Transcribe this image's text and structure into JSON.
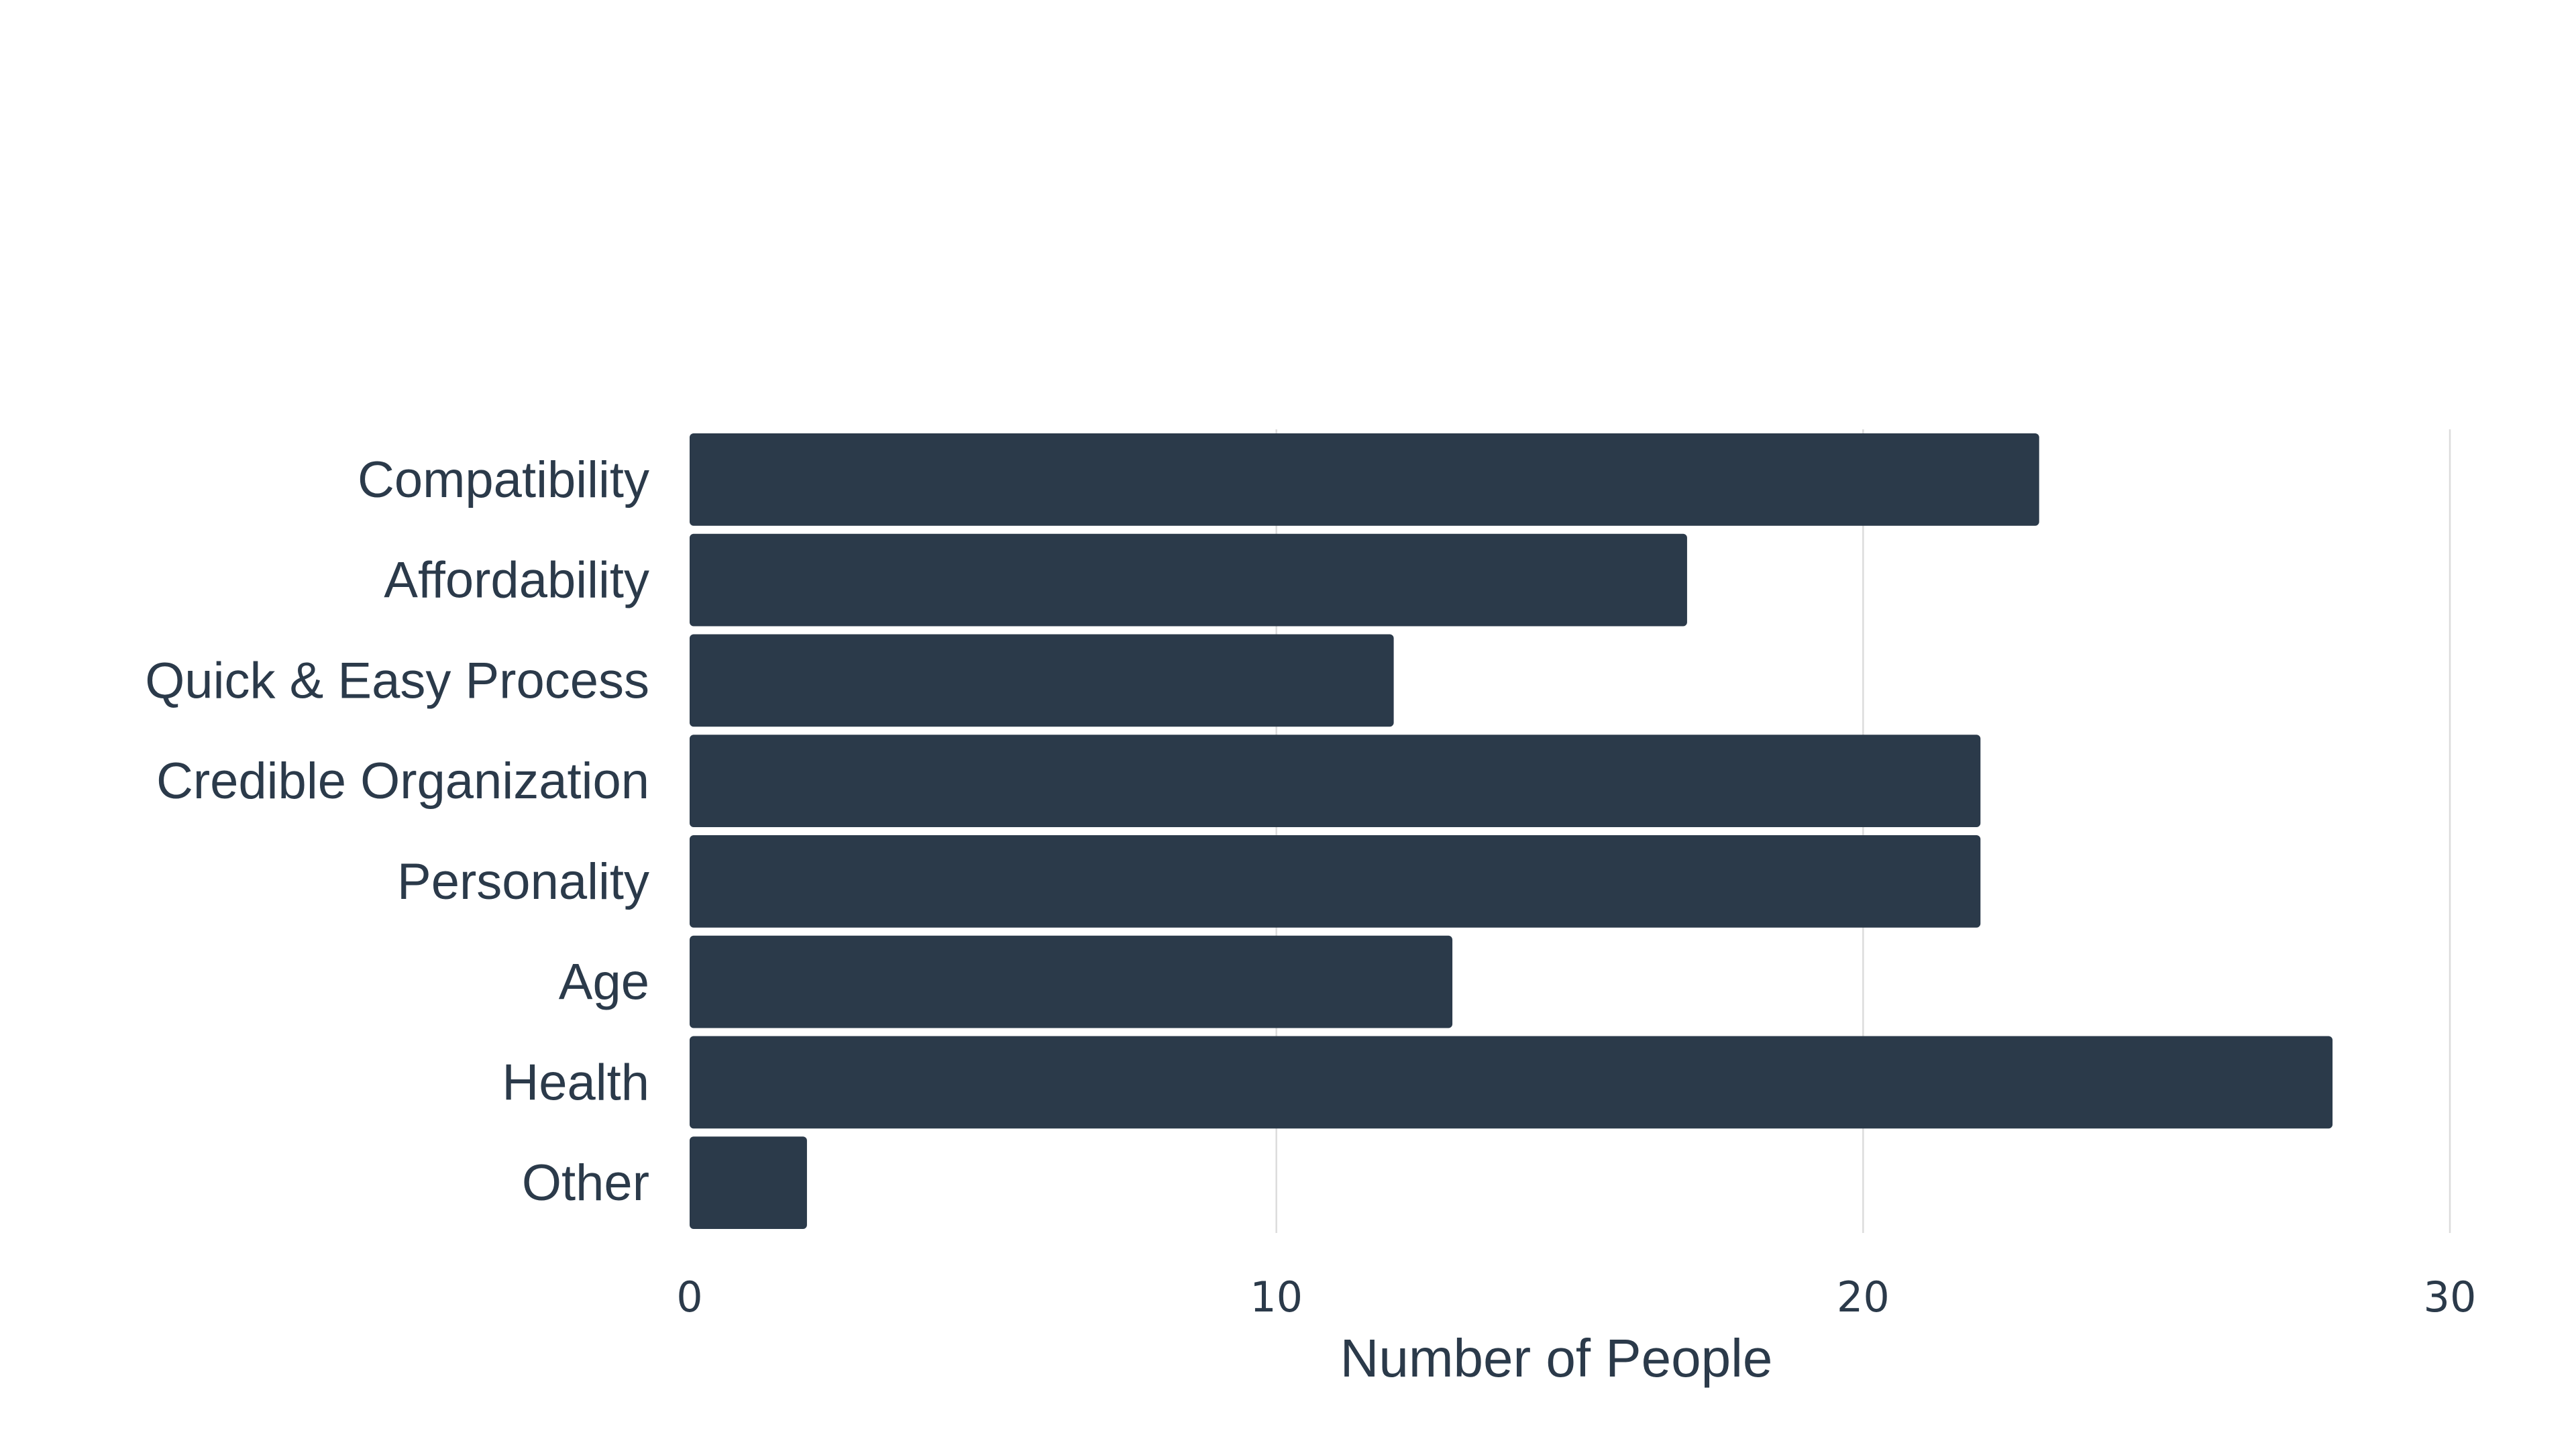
{
  "chart_data": {
    "type": "bar",
    "orientation": "horizontal",
    "categories": [
      "Compatibility",
      "Affordability",
      "Quick & Easy Process",
      "Credible Organization",
      "Personality",
      "Age",
      "Health",
      "Other"
    ],
    "values": [
      23,
      17,
      12,
      22,
      22,
      13,
      28,
      2
    ],
    "title": "",
    "xlabel": "Number of People",
    "ylabel": "",
    "xlim": [
      0,
      30
    ],
    "xticks": [
      "0",
      "10",
      "20",
      "30"
    ],
    "grid": true,
    "legend": "none",
    "bar_color": "#2b3a4a",
    "text_color": "#2b3a4a",
    "grid_color": "#dcdcdc"
  }
}
